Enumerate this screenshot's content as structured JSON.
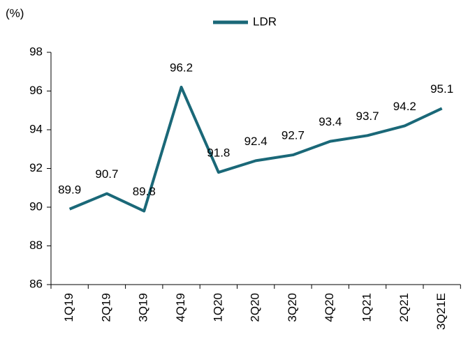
{
  "chart_data": {
    "type": "line",
    "y_label": "(%)",
    "categories": [
      "1Q19",
      "2Q19",
      "3Q19",
      "4Q19",
      "1Q20",
      "2Q20",
      "3Q20",
      "4Q20",
      "1Q21",
      "2Q21",
      "3Q21E"
    ],
    "series": [
      {
        "name": "LDR",
        "color": "#1a6878",
        "values": [
          89.9,
          90.7,
          89.8,
          96.2,
          91.8,
          92.4,
          92.7,
          93.4,
          93.7,
          94.2,
          95.1
        ]
      }
    ],
    "ylim": [
      86,
      98
    ],
    "yticks": [
      86,
      88,
      90,
      92,
      94,
      96,
      98
    ],
    "legend": "top"
  }
}
